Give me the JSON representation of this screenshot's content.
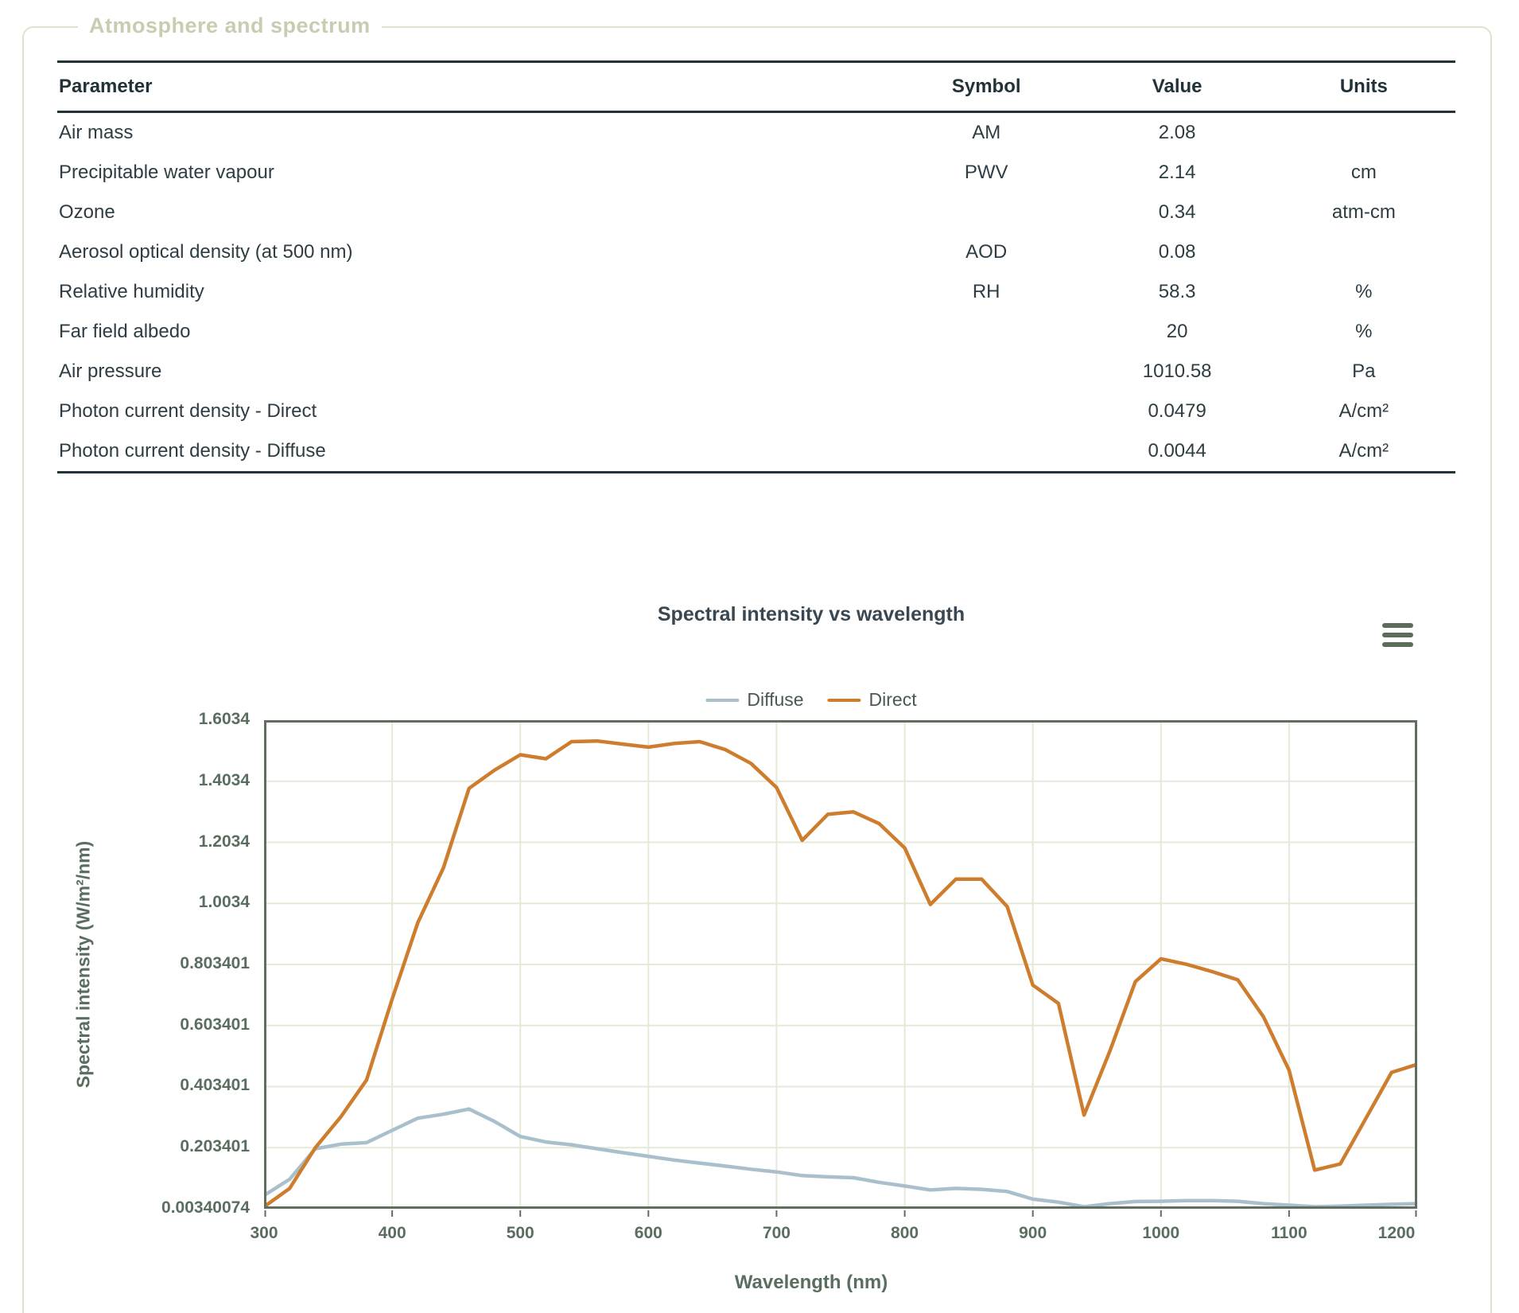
{
  "panel": {
    "legend": "Atmosphere and spectrum"
  },
  "table": {
    "headers": [
      "Parameter",
      "Symbol",
      "Value",
      "Units"
    ],
    "rows": [
      [
        "Air mass",
        "AM",
        "2.08",
        ""
      ],
      [
        "Precipitable water vapour",
        "PWV",
        "2.14",
        "cm"
      ],
      [
        "Ozone",
        "",
        "0.34",
        "atm-cm"
      ],
      [
        "Aerosol optical density (at 500 nm)",
        "AOD",
        "0.08",
        ""
      ],
      [
        "Relative humidity",
        "RH",
        "58.3",
        "%"
      ],
      [
        "Far field albedo",
        "",
        "20",
        "%"
      ],
      [
        "Air pressure",
        "",
        "1010.58",
        "Pa"
      ],
      [
        "Photon current density - Direct",
        "",
        "0.0479",
        "A/cm²"
      ],
      [
        "Photon current density - Diffuse",
        "",
        "0.0044",
        "A/cm²"
      ]
    ]
  },
  "chart": {
    "menu_icon": "hamburger-icon",
    "grid_color": "#e7e9d8",
    "border_color": "#5f6e5f",
    "tick_color": "#5f6e5f"
  },
  "chart_data": {
    "type": "line",
    "title": "Spectral intensity vs wavelength",
    "xlabel": "Wavelength (nm)",
    "ylabel": "Spectral intensity (W/m²/nm)",
    "xlim": [
      300,
      1200
    ],
    "ylim": [
      0.00340074,
      1.6034
    ],
    "grid": true,
    "legend_position": "top-center",
    "x_ticks": [
      300,
      400,
      500,
      600,
      700,
      800,
      900,
      1000,
      1100,
      1200
    ],
    "y_ticks": [
      0.00340074,
      0.203401,
      0.403401,
      0.603401,
      0.803401,
      1.0034,
      1.2034,
      1.4034,
      1.6034
    ],
    "y_tick_labels": [
      "0.00340074",
      "0.203401",
      "0.403401",
      "0.603401",
      "0.803401",
      "1.0034",
      "1.2034",
      "1.4034",
      "1.6034"
    ],
    "x": [
      300,
      320,
      340,
      360,
      380,
      400,
      420,
      440,
      460,
      480,
      500,
      520,
      540,
      560,
      580,
      600,
      620,
      640,
      660,
      680,
      700,
      720,
      740,
      760,
      780,
      800,
      820,
      840,
      860,
      880,
      900,
      920,
      940,
      960,
      980,
      1000,
      1020,
      1040,
      1060,
      1080,
      1100,
      1120,
      1140,
      1160,
      1180,
      1200
    ],
    "series": [
      {
        "name": "Diffuse",
        "color": "#a9c0cc",
        "values": [
          0.047,
          0.1,
          0.2,
          0.215,
          0.22,
          0.26,
          0.3,
          0.313,
          0.33,
          0.289,
          0.24,
          0.222,
          0.213,
          0.2,
          0.187,
          0.175,
          0.163,
          0.153,
          0.143,
          0.133,
          0.124,
          0.112,
          0.108,
          0.105,
          0.09,
          0.078,
          0.065,
          0.07,
          0.067,
          0.06,
          0.035,
          0.025,
          0.01,
          0.02,
          0.027,
          0.028,
          0.03,
          0.03,
          0.028,
          0.02,
          0.015,
          0.01,
          0.012,
          0.015,
          0.018,
          0.02
        ]
      },
      {
        "name": "Direct",
        "color": "#cd7d2d",
        "values": [
          0.01,
          0.07,
          0.203,
          0.305,
          0.425,
          0.69,
          0.94,
          1.12,
          1.38,
          1.44,
          1.49,
          1.477,
          1.533,
          1.535,
          1.525,
          1.515,
          1.527,
          1.533,
          1.507,
          1.462,
          1.383,
          1.21,
          1.295,
          1.303,
          1.265,
          1.185,
          1.0,
          1.083,
          1.083,
          0.993,
          0.736,
          0.676,
          0.31,
          0.518,
          0.747,
          0.822,
          0.804,
          0.78,
          0.753,
          0.632,
          0.457,
          0.13,
          0.15,
          0.3,
          0.45,
          0.476
        ]
      }
    ]
  }
}
